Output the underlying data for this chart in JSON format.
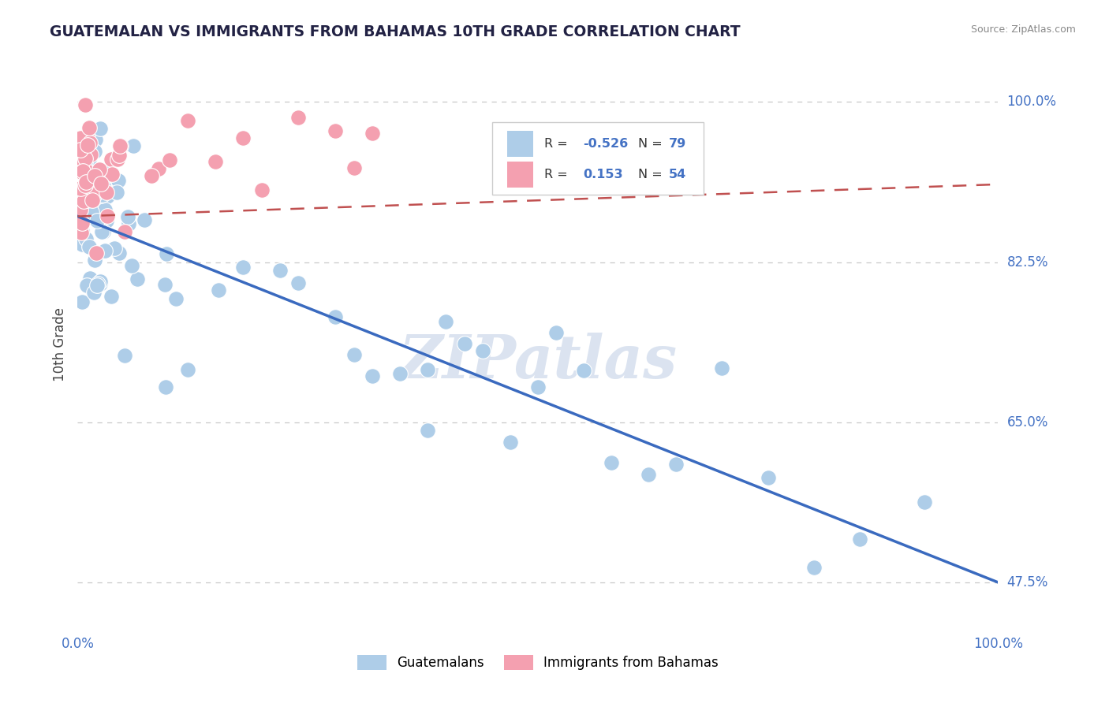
{
  "title": "GUATEMALAN VS IMMIGRANTS FROM BAHAMAS 10TH GRADE CORRELATION CHART",
  "source": "Source: ZipAtlas.com",
  "ylabel": "10th Grade",
  "r_blue": -0.526,
  "n_blue": 79,
  "r_pink": 0.153,
  "n_pink": 54,
  "blue_color": "#aecde8",
  "pink_color": "#f4a0b0",
  "line_blue_color": "#3a6abf",
  "line_pink_color": "#c05050",
  "grid_color": "#c8c8c8",
  "ytick_color": "#4472c4",
  "watermark_color": "#ccd8ea",
  "xlim": [
    0.0,
    1.0
  ],
  "ylim": [
    0.42,
    1.05
  ],
  "ytick_positions": [
    0.475,
    0.65,
    0.825,
    1.0
  ],
  "ytick_labels": [
    "47.5%",
    "65.0%",
    "82.5%",
    "100.0%"
  ],
  "blue_line_x0": 0.0,
  "blue_line_y0": 0.875,
  "blue_line_x1": 1.0,
  "blue_line_y1": 0.475,
  "pink_line_x0": 0.0,
  "pink_line_y0": 0.875,
  "pink_line_x1": 1.0,
  "pink_line_y1": 0.91
}
